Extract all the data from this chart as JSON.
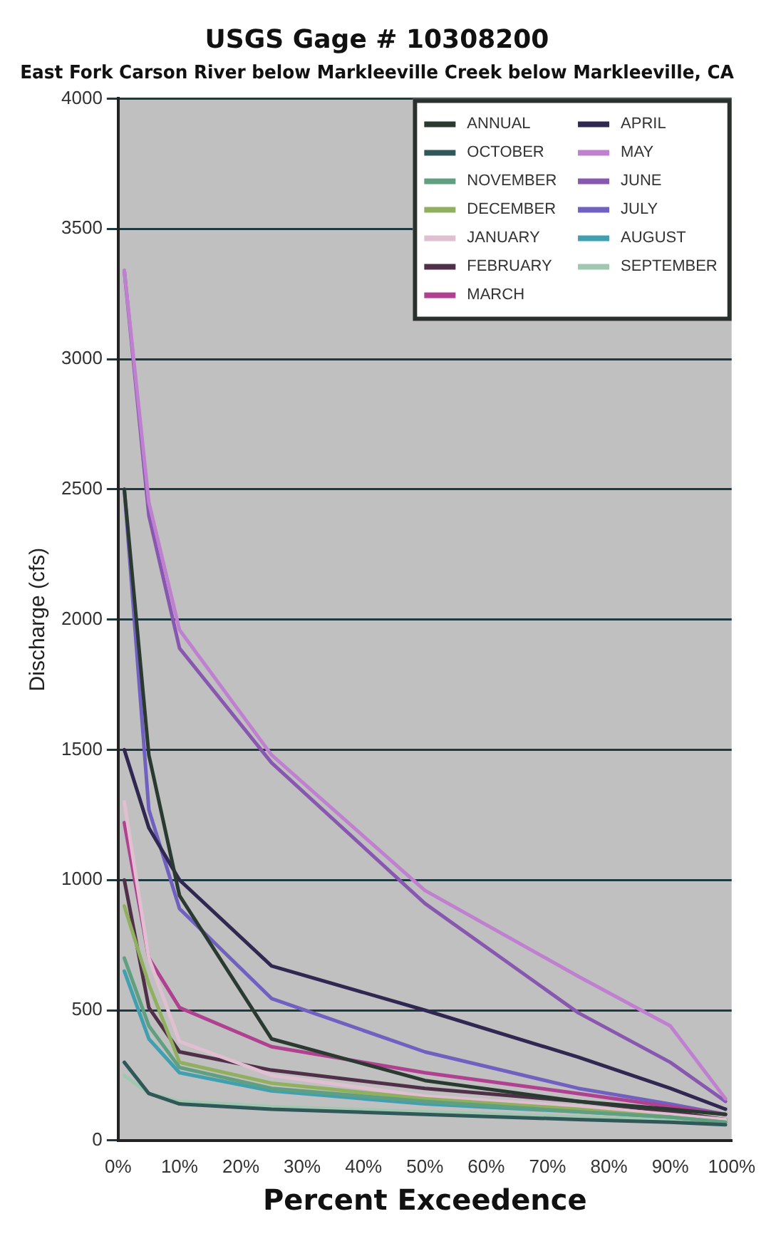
{
  "chart_data": {
    "type": "line",
    "title": "USGS Gage # 10308200",
    "subtitle": "East Fork Carson River below Markleeville Creek below Markleeville, CA",
    "xlabel": "Percent Exceedence",
    "ylabel": "Discharge (cfs)",
    "x": [
      1,
      5,
      10,
      25,
      50,
      75,
      90,
      99
    ],
    "xlim": [
      0,
      100
    ],
    "xticks": [
      {
        "value": 0,
        "label": "0%"
      },
      {
        "value": 10,
        "label": "10%"
      },
      {
        "value": 20,
        "label": "20%"
      },
      {
        "value": 30,
        "label": "30%"
      },
      {
        "value": 40,
        "label": "40%"
      },
      {
        "value": 50,
        "label": "50%"
      },
      {
        "value": 60,
        "label": "60%"
      },
      {
        "value": 70,
        "label": "70%"
      },
      {
        "value": 80,
        "label": "80%"
      },
      {
        "value": 90,
        "label": "90%"
      },
      {
        "value": 100,
        "label": "100%"
      }
    ],
    "ylim": [
      0,
      4000
    ],
    "yticks": [
      0,
      500,
      1000,
      1500,
      2000,
      2500,
      3000,
      3500,
      4000
    ],
    "grid": "y",
    "legend": "top right",
    "marker": "none",
    "line_style": "solid",
    "series": [
      {
        "name": "ANNUAL",
        "color": "#2a3a30",
        "values": [
          2500,
          1480,
          940,
          390,
          230,
          150,
          120,
          100
        ]
      },
      {
        "name": "OCTOBER",
        "color": "#305858",
        "values": [
          300,
          180,
          140,
          120,
          100,
          80,
          70,
          60
        ]
      },
      {
        "name": "NOVEMBER",
        "color": "#60a080",
        "values": [
          700,
          440,
          280,
          200,
          150,
          110,
          90,
          70
        ]
      },
      {
        "name": "DECEMBER",
        "color": "#90b060",
        "values": [
          900,
          600,
          300,
          220,
          160,
          120,
          90,
          70
        ]
      },
      {
        "name": "JANUARY",
        "color": "#e0c0d0",
        "values": [
          1300,
          700,
          380,
          250,
          170,
          130,
          100,
          80
        ]
      },
      {
        "name": "FEBRUARY",
        "color": "#503048",
        "values": [
          1000,
          510,
          340,
          270,
          200,
          150,
          110,
          80
        ]
      },
      {
        "name": "MARCH",
        "color": "#b04090",
        "values": [
          1220,
          700,
          510,
          360,
          260,
          180,
          130,
          100
        ]
      },
      {
        "name": "APRIL",
        "color": "#302850",
        "values": [
          1500,
          1200,
          1000,
          670,
          500,
          320,
          200,
          120
        ]
      },
      {
        "name": "MAY",
        "color": "#c080d0",
        "values": [
          3340,
          2450,
          1960,
          1480,
          960,
          630,
          440,
          160
        ]
      },
      {
        "name": "JUNE",
        "color": "#8858b0",
        "values": [
          3340,
          2400,
          1890,
          1450,
          910,
          490,
          300,
          150
        ]
      },
      {
        "name": "JULY",
        "color": "#7060c0",
        "values": [
          2500,
          1270,
          890,
          545,
          340,
          200,
          140,
          100
        ]
      },
      {
        "name": "AUGUST",
        "color": "#40a0b0",
        "values": [
          650,
          390,
          260,
          190,
          140,
          110,
          90,
          70
        ]
      },
      {
        "name": "SEPTEMBER",
        "color": "#a0c8b0",
        "values": [
          250,
          180,
          150,
          130,
          110,
          90,
          80,
          70
        ]
      }
    ]
  }
}
